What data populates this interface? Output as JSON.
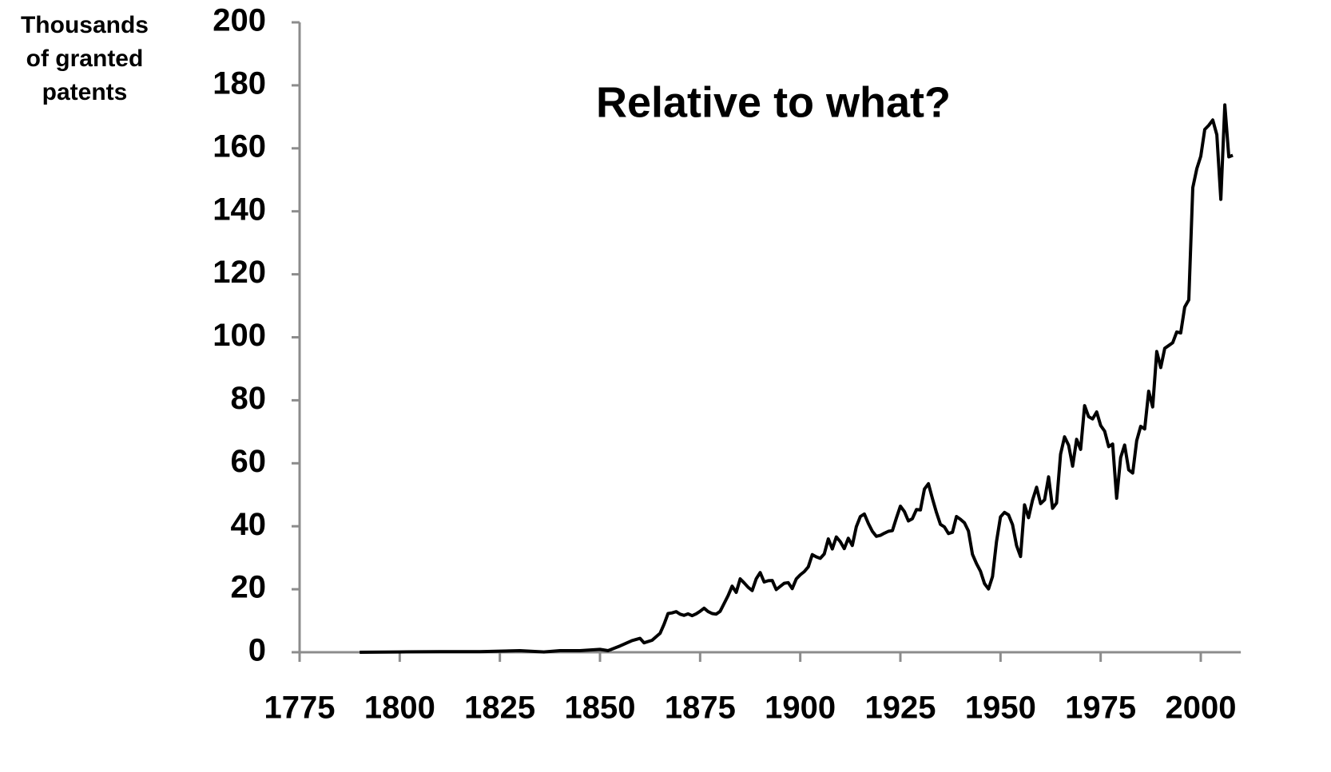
{
  "chart_data": {
    "type": "line",
    "y_label": [
      "Thousands",
      "of granted",
      "patents"
    ],
    "annotation": "Relative to what?",
    "color": "#000000",
    "xlim": [
      1775,
      2010
    ],
    "xticks": [
      1775,
      1800,
      1825,
      1850,
      1875,
      1900,
      1925,
      1950,
      1975,
      2000
    ],
    "ylim": [
      0,
      200
    ],
    "yticks": [
      0,
      20,
      40,
      60,
      80,
      100,
      120,
      140,
      160,
      180,
      200
    ],
    "x": [
      1790,
      1800,
      1810,
      1820,
      1830,
      1836,
      1840,
      1845,
      1850,
      1852,
      1855,
      1858,
      1860,
      1861,
      1863,
      1865,
      1866,
      1867,
      1868,
      1869,
      1870,
      1871,
      1872,
      1873,
      1874,
      1875,
      1876,
      1877,
      1878,
      1879,
      1880,
      1881,
      1882,
      1883,
      1884,
      1885,
      1886,
      1887,
      1888,
      1889,
      1890,
      1891,
      1892,
      1893,
      1894,
      1895,
      1896,
      1897,
      1898,
      1899,
      1900,
      1901,
      1902,
      1903,
      1904,
      1905,
      1906,
      1907,
      1908,
      1909,
      1910,
      1911,
      1912,
      1913,
      1914,
      1915,
      1916,
      1917,
      1918,
      1919,
      1920,
      1921,
      1922,
      1923,
      1924,
      1925,
      1926,
      1927,
      1928,
      1929,
      1930,
      1931,
      1932,
      1933,
      1934,
      1935,
      1936,
      1937,
      1938,
      1939,
      1940,
      1941,
      1942,
      1943,
      1944,
      1945,
      1946,
      1947,
      1948,
      1949,
      1950,
      1951,
      1952,
      1953,
      1954,
      1955,
      1956,
      1957,
      1958,
      1959,
      1960,
      1961,
      1962,
      1963,
      1964,
      1965,
      1966,
      1967,
      1968,
      1969,
      1970,
      1971,
      1972,
      1973,
      1974,
      1975,
      1976,
      1977,
      1978,
      1979,
      1980,
      1981,
      1982,
      1983,
      1984,
      1985,
      1986,
      1987,
      1988,
      1989,
      1990,
      1991,
      1992,
      1993,
      1994,
      1995,
      1996,
      1997,
      1998,
      1999,
      2000,
      2001,
      2002,
      2003,
      2004,
      2005,
      2006,
      2007,
      2008
    ],
    "values": [
      0,
      0.1,
      0.2,
      0.2,
      0.5,
      0.1,
      0.5,
      0.5,
      0.9,
      0.5,
      2,
      3.7,
      4.4,
      3,
      3.8,
      6,
      8.9,
      12.3,
      12.5,
      12.9,
      12.1,
      11.7,
      12.2,
      11.6,
      12.2,
      13,
      14,
      12.9,
      12.3,
      12.1,
      13,
      15.5,
      18,
      21,
      19,
      23.3,
      22,
      20.6,
      19.6,
      23.3,
      25.3,
      22.3,
      22.7,
      22.8,
      19.9,
      20.9,
      21.9,
      22.1,
      20.2,
      23.3,
      24.6,
      25.6,
      27.1,
      31,
      30.3,
      29.8,
      31.2,
      36,
      32.8,
      36.6,
      35.1,
      32.9,
      36.2,
      33.9,
      39.9,
      43.1,
      43.9,
      40.9,
      38.4,
      36.8,
      37.1,
      37.8,
      38.4,
      38.6,
      42.6,
      46.4,
      44.7,
      41.7,
      42.4,
      45.3,
      45.2,
      51.8,
      53.5,
      48.8,
      44.4,
      40.6,
      39.8,
      37.7,
      38.1,
      43.1,
      42.2,
      41.1,
      38.5,
      31.1,
      28.1,
      25.7,
      21.8,
      20.1,
      24,
      35.1,
      43,
      44.4,
      43.6,
      40.5,
      33.9,
      30.4,
      46.8,
      42.7,
      48.3,
      52.4,
      47.2,
      48.4,
      55.7,
      45.7,
      47.4,
      62.9,
      68.4,
      65.7,
      59.1,
      67.6,
      64.4,
      78.3,
      74.8,
      74.1,
      76.3,
      72,
      70.2,
      65.3,
      66.1,
      48.9,
      61.8,
      65.8,
      57.9,
      56.9,
      67.2,
      71.7,
      70.9,
      82.9,
      77.9,
      95.5,
      90.4,
      96.5,
      97.4,
      98.3,
      101.7,
      101.4,
      109.6,
      111.9,
      147.5,
      153.5,
      157.5,
      166,
      167.3,
      169,
      164.3,
      143.8,
      173.8,
      157.3,
      157.8
    ]
  }
}
